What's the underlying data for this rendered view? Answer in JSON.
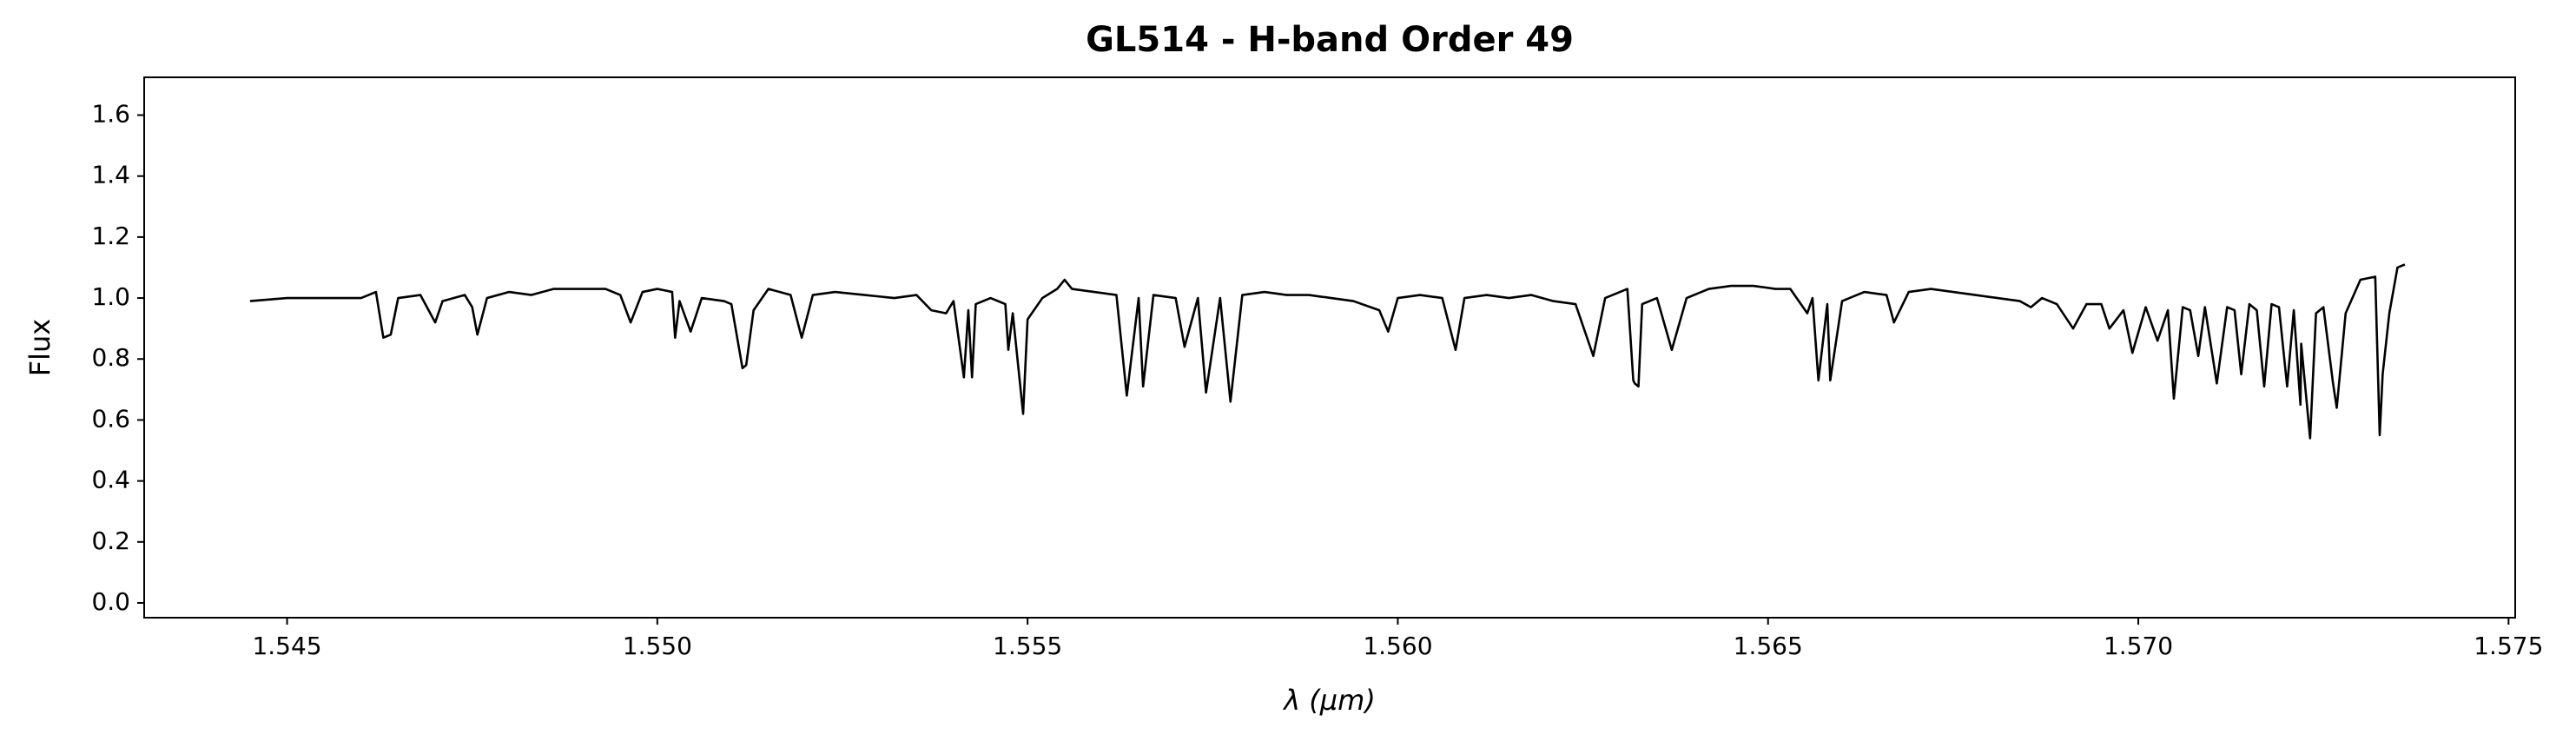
{
  "chart_data": {
    "type": "line",
    "title": "GL514 - H-band Order 49",
    "xlabel": "λ (μm)",
    "ylabel": "Flux",
    "color": "#000000",
    "x": [
      1.5445,
      1.545,
      1.5455,
      1.546,
      1.5462,
      1.5463,
      1.5464,
      1.5465,
      1.5468,
      1.547,
      1.5471,
      1.5474,
      1.5475,
      1.54757,
      1.5477,
      1.548,
      1.5483,
      1.5486,
      1.549,
      1.5493,
      1.5495,
      1.54964,
      1.5498,
      1.55,
      1.5502,
      1.55024,
      1.5503,
      1.55045,
      1.5506,
      1.5509,
      1.551,
      1.55115,
      1.5512,
      1.5513,
      1.5515,
      1.5518,
      1.55195,
      1.5521,
      1.5524,
      1.5528,
      1.5532,
      1.5535,
      1.5537,
      1.5539,
      1.554,
      1.55414,
      1.5542,
      1.55425,
      1.5543,
      1.5545,
      1.5547,
      1.55474,
      1.5548,
      1.55494,
      1.555,
      1.5552,
      1.5554,
      1.5555,
      1.5556,
      1.5559,
      1.5562,
      1.55634,
      1.5565,
      1.55656,
      1.5567,
      1.557,
      1.55712,
      1.5573,
      1.55741,
      1.5576,
      1.55774,
      1.5579,
      1.5582,
      1.5585,
      1.5588,
      1.5591,
      1.5594,
      1.55975,
      1.55987,
      1.56,
      1.5603,
      1.5606,
      1.56078,
      1.5609,
      1.5612,
      1.5615,
      1.5618,
      1.5621,
      1.5624,
      1.56264,
      1.5628,
      1.563,
      1.5631,
      1.56318,
      1.5632,
      1.56325,
      1.5633,
      1.5635,
      1.5637,
      1.5639,
      1.5642,
      1.5645,
      1.5648,
      1.5651,
      1.5653,
      1.56553,
      1.5656,
      1.56568,
      1.5658,
      1.56584,
      1.566,
      1.5663,
      1.5666,
      1.5667,
      1.5669,
      1.5672,
      1.5675,
      1.5678,
      1.5681,
      1.5684,
      1.56855,
      1.5687,
      1.5689,
      1.56912,
      1.5693,
      1.5695,
      1.56961,
      1.5698,
      1.56992,
      1.5701,
      1.57026,
      1.5704,
      1.57048,
      1.5706,
      1.5707,
      1.57081,
      1.5709,
      1.57106,
      1.5712,
      1.5713,
      1.57139,
      1.5715,
      1.5716,
      1.5717,
      1.5718,
      1.5719,
      1.57201,
      1.5721,
      1.57219,
      1.5722,
      1.57232,
      1.5724,
      1.5725,
      1.57263,
      1.57268,
      1.5728,
      1.573,
      1.5732,
      1.57326,
      1.5733,
      1.57339,
      1.5735,
      1.5736
    ],
    "values": [
      0.99,
      1.0,
      1.0,
      1.0,
      1.02,
      0.87,
      0.88,
      1.0,
      1.01,
      0.92,
      0.99,
      1.01,
      0.97,
      0.88,
      1.0,
      1.02,
      1.01,
      1.03,
      1.03,
      1.03,
      1.01,
      0.92,
      1.02,
      1.03,
      1.02,
      0.87,
      0.99,
      0.89,
      1.0,
      0.99,
      0.98,
      0.77,
      0.78,
      0.96,
      1.03,
      1.01,
      0.87,
      1.01,
      1.02,
      1.01,
      1.0,
      1.01,
      0.96,
      0.95,
      0.99,
      0.74,
      0.96,
      0.74,
      0.98,
      1.0,
      0.98,
      0.83,
      0.95,
      0.62,
      0.93,
      1.0,
      1.03,
      1.06,
      1.03,
      1.02,
      1.01,
      0.68,
      1.0,
      0.71,
      1.01,
      1.0,
      0.84,
      1.0,
      0.69,
      1.0,
      0.66,
      1.01,
      1.02,
      1.01,
      1.01,
      1.0,
      0.99,
      0.96,
      0.89,
      1.0,
      1.01,
      1.0,
      0.83,
      1.0,
      1.01,
      1.0,
      1.01,
      0.99,
      0.98,
      0.81,
      1.0,
      1.02,
      1.03,
      0.73,
      0.72,
      0.71,
      0.98,
      1.0,
      0.83,
      1.0,
      1.03,
      1.04,
      1.04,
      1.03,
      1.03,
      0.95,
      1.0,
      0.73,
      0.98,
      0.73,
      0.99,
      1.02,
      1.01,
      0.92,
      1.02,
      1.03,
      1.02,
      1.01,
      1.0,
      0.99,
      0.97,
      1.0,
      0.98,
      0.9,
      0.98,
      0.98,
      0.9,
      0.96,
      0.82,
      0.97,
      0.86,
      0.96,
      0.67,
      0.97,
      0.96,
      0.81,
      0.97,
      0.72,
      0.97,
      0.96,
      0.75,
      0.98,
      0.96,
      0.71,
      0.98,
      0.97,
      0.71,
      0.96,
      0.65,
      0.85,
      0.54,
      0.95,
      0.97,
      0.72,
      0.64,
      0.95,
      1.06,
      1.07,
      0.55,
      0.75,
      0.95,
      1.1,
      1.11
    ],
    "xlim": [
      1.54307,
      1.57509
    ],
    "ylim": [
      -0.0485,
      1.724
    ],
    "xticks": [
      1.545,
      {
        "value": 1.55,
        "label": "1.550"
      },
      1.555,
      {
        "value": 1.56,
        "label": "1.560"
      },
      1.565,
      {
        "value": 1.57,
        "label": "1.570"
      },
      1.575
    ],
    "yticks": [
      {
        "value": 0,
        "label": "0.0"
      },
      0.2,
      0.4,
      0.6,
      0.8,
      {
        "value": 1,
        "label": "1.0"
      },
      1.2,
      1.4,
      1.6
    ]
  }
}
